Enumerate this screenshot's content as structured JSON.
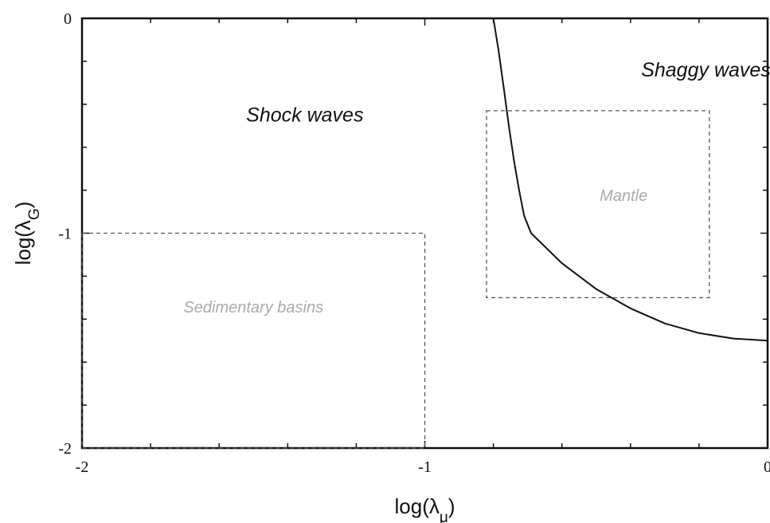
{
  "chart_data": {
    "type": "line",
    "xlabel": "log(λμ)",
    "ylabel": "log(λG)",
    "xlim": [
      -2,
      0
    ],
    "ylim": [
      -2,
      0
    ],
    "x_ticks": [
      -2,
      -1,
      0
    ],
    "y_ticks": [
      -2,
      -1,
      0
    ],
    "x_tick_labels": [
      "-2",
      "-1",
      "0"
    ],
    "y_tick_labels": [
      "-2",
      "-1",
      "0"
    ],
    "minor_tick_step": 0.2,
    "grid": false,
    "colors": {
      "curve": "#111111",
      "box": "#555555",
      "muted_text": "#aaaaaa"
    },
    "series": [
      {
        "x": [
          -0.8,
          -0.785,
          -0.77,
          -0.755,
          -0.74,
          -0.725,
          -0.71,
          -0.69,
          -0.6,
          -0.5,
          -0.4,
          -0.3,
          -0.2,
          -0.1,
          0.0
        ],
        "y": [
          0.0,
          -0.15,
          -0.32,
          -0.5,
          -0.66,
          -0.8,
          -0.92,
          -1.0,
          -1.14,
          -1.26,
          -1.35,
          -1.42,
          -1.465,
          -1.49,
          -1.5
        ]
      }
    ],
    "regions": [
      {
        "label": "Sedimentary basins",
        "x": [
          -2,
          -1
        ],
        "y": [
          -2,
          -1
        ],
        "label_at": [
          -1.5,
          -1.37
        ]
      },
      {
        "label": "Mantle",
        "x": [
          -0.82,
          -0.17
        ],
        "y": [
          -1.3,
          -0.43
        ],
        "label_at": [
          -0.42,
          -0.85
        ]
      }
    ],
    "annotations": [
      {
        "text": "Shock waves",
        "at": [
          -1.35,
          -0.48
        ]
      },
      {
        "text": "Shaggy waves",
        "at": [
          -0.18,
          -0.27
        ]
      }
    ]
  }
}
